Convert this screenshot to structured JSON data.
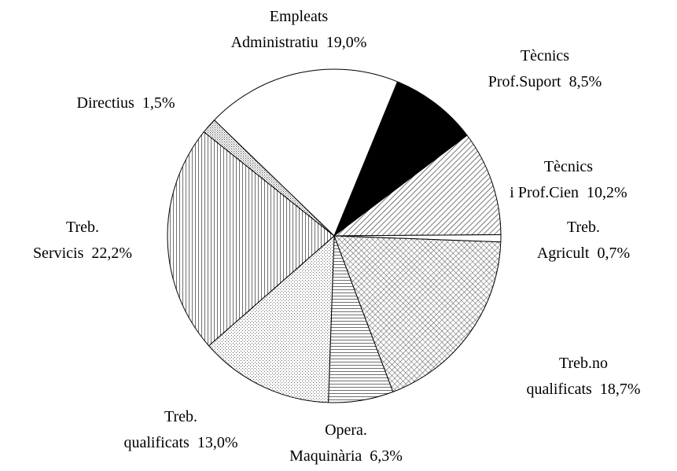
{
  "chart_data": {
    "type": "pie",
    "categories": [
      [
        "Empleats",
        "Administratiu"
      ],
      [
        "Tècnics",
        "Prof.Suport"
      ],
      [
        "Tècnics",
        "i Prof.Cien"
      ],
      [
        "Treb.",
        "Agricult"
      ],
      [
        "Treb.no",
        "qualificats"
      ],
      [
        "Opera.",
        "Maquinària"
      ],
      [
        "Treb.",
        "qualificats"
      ],
      [
        "Treb.",
        "Servicis"
      ],
      [
        "Directius"
      ]
    ],
    "values": [
      19.0,
      8.5,
      10.2,
      0.7,
      18.7,
      6.3,
      13.0,
      22.2,
      1.5
    ],
    "value_labels": [
      "19,0%",
      "8,5%",
      "10,2%",
      "0,7%",
      "18,7%",
      "6,3%",
      "13,0%",
      "22,2%",
      "1,5%"
    ]
  }
}
